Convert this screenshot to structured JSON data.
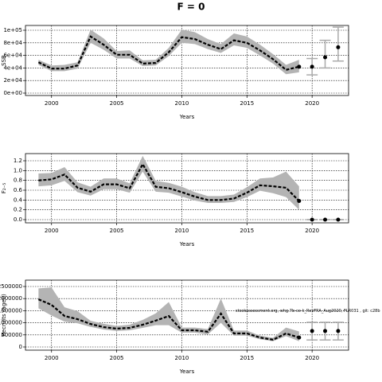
{
  "title": "F = 0",
  "chart_data": [
    {
      "type": "line",
      "ylabel": "SSB",
      "xlabel": "Years",
      "x": [
        1999,
        2000,
        2001,
        2002,
        2003,
        2004,
        2005,
        2006,
        2007,
        2008,
        2009,
        2010,
        2011,
        2012,
        2013,
        2014,
        2015,
        2016,
        2017,
        2018,
        2019
      ],
      "values": [
        49000,
        39000,
        39000,
        44000,
        90000,
        77000,
        61000,
        61000,
        47000,
        48000,
        65000,
        89000,
        86000,
        77000,
        70000,
        84000,
        80000,
        68000,
        54000,
        37000,
        42000
      ],
      "lower": [
        45000,
        35000,
        35000,
        39000,
        80000,
        69000,
        55000,
        55000,
        43000,
        44000,
        59000,
        80000,
        78000,
        70000,
        64000,
        76000,
        72000,
        60000,
        47000,
        30000,
        33000
      ],
      "upper": [
        53000,
        44000,
        45000,
        49000,
        101000,
        87000,
        67000,
        68000,
        52000,
        53000,
        72000,
        101000,
        97000,
        86000,
        78000,
        95000,
        90000,
        77000,
        62000,
        45000,
        53000
      ],
      "projection": {
        "x": [
          2020,
          2021,
          2022
        ],
        "values": [
          42000,
          57000,
          73000
        ],
        "lower": [
          29000,
          40000,
          51000
        ],
        "upper": [
          55000,
          84000,
          105000
        ]
      },
      "xlim": [
        1998,
        2022.8
      ],
      "xticks": [
        2000,
        2005,
        2010,
        2015,
        2020
      ],
      "ylim": [
        -3800,
        107600
      ],
      "yticks": [
        {
          "value": 0,
          "label": "0e+00"
        },
        {
          "value": 20000,
          "label": "2e+04"
        },
        {
          "value": 40000,
          "label": "4e+04"
        },
        {
          "value": 60000,
          "label": "6e+04"
        },
        {
          "value": 80000,
          "label": "8e+04"
        },
        {
          "value": 100000,
          "label": "1e+05"
        }
      ],
      "grid": true,
      "color": "#000000",
      "band_color": "#b4b4b4",
      "projection_color": "#aaaaaa"
    },
    {
      "type": "line",
      "ylabel": "F₂₋₅",
      "xlabel": "Years",
      "x": [
        1999,
        2000,
        2001,
        2002,
        2003,
        2004,
        2005,
        2006,
        2007,
        2008,
        2009,
        2010,
        2011,
        2012,
        2013,
        2014,
        2015,
        2016,
        2017,
        2018,
        2019
      ],
      "values": [
        0.8,
        0.82,
        0.92,
        0.65,
        0.57,
        0.72,
        0.72,
        0.64,
        1.13,
        0.67,
        0.64,
        0.56,
        0.47,
        0.4,
        0.4,
        0.43,
        0.55,
        0.7,
        0.68,
        0.65,
        0.38
      ],
      "lower": [
        0.68,
        0.7,
        0.79,
        0.56,
        0.49,
        0.62,
        0.62,
        0.55,
        0.98,
        0.57,
        0.55,
        0.47,
        0.39,
        0.34,
        0.34,
        0.36,
        0.46,
        0.59,
        0.54,
        0.46,
        0.2
      ],
      "upper": [
        0.94,
        0.95,
        1.07,
        0.76,
        0.67,
        0.84,
        0.84,
        0.74,
        1.3,
        0.79,
        0.75,
        0.67,
        0.56,
        0.48,
        0.48,
        0.51,
        0.66,
        0.84,
        0.86,
        0.98,
        0.68
      ],
      "projection": {
        "x": [
          2020,
          2021,
          2022
        ],
        "values": [
          0,
          0,
          0
        ],
        "lower": [
          0,
          0,
          0
        ],
        "upper": [
          0,
          0,
          0
        ]
      },
      "xlim": [
        1998,
        2022.8
      ],
      "xticks": [
        2000,
        2005,
        2010,
        2015,
        2020
      ],
      "ylim": [
        -0.065,
        1.346
      ],
      "yticks": [
        {
          "value": 0,
          "label": "0.0"
        },
        0.2,
        0.4,
        0.6,
        0.8,
        {
          "value": 1,
          "label": "1.0"
        },
        1.2
      ],
      "grid": true,
      "color": "#000000",
      "band_color": "#b4b4b4",
      "projection_color": "#aaaaaa"
    },
    {
      "type": "line",
      "ylabel": "Recruits (age0)",
      "xlabel": "Years",
      "annotation": "stockassessment.org, whg.7b-ce-k_RevFRA_Aug2020, FLR031 , git: c28b",
      "x": [
        1999,
        2000,
        2001,
        2002,
        2003,
        2004,
        2005,
        2006,
        2007,
        2008,
        2009,
        2010,
        2011,
        2012,
        2013,
        2014,
        2015,
        2016,
        2017,
        2018,
        2019
      ],
      "values": [
        1970000,
        1740000,
        1280000,
        1150000,
        950000,
        820000,
        760000,
        790000,
        920000,
        1090000,
        1280000,
        690000,
        690000,
        630000,
        1380000,
        560000,
        560000,
        390000,
        300000,
        560000,
        390000
      ],
      "lower": [
        1600000,
        1300000,
        1050000,
        980000,
        830000,
        720000,
        660000,
        690000,
        790000,
        900000,
        900000,
        590000,
        590000,
        520000,
        1000000,
        470000,
        470000,
        320000,
        240000,
        450000,
        240000
      ],
      "upper": [
        2420000,
        2460000,
        1640000,
        1480000,
        1080000,
        960000,
        870000,
        920000,
        1120000,
        1390000,
        1860000,
        800000,
        800000,
        740000,
        2000000,
        680000,
        680000,
        470000,
        380000,
        800000,
        640000
      ],
      "projection": {
        "x": [
          2020,
          2021,
          2022
        ],
        "values": [
          660000,
          660000,
          660000
        ],
        "lower": [
          290000,
          290000,
          290000
        ],
        "upper": [
          1020000,
          1020000,
          1020000
        ]
      },
      "xlim": [
        1998,
        2022.8
      ],
      "xticks": [
        2000,
        2005,
        2010,
        2015,
        2020
      ],
      "ylim": [
        -131600,
        2763000
      ],
      "yticks": [
        0,
        500000,
        1000000,
        1500000,
        2000000,
        2500000
      ],
      "grid": true,
      "color": "#000000",
      "band_color": "#b4b4b4",
      "projection_color": "#aaaaaa"
    }
  ]
}
